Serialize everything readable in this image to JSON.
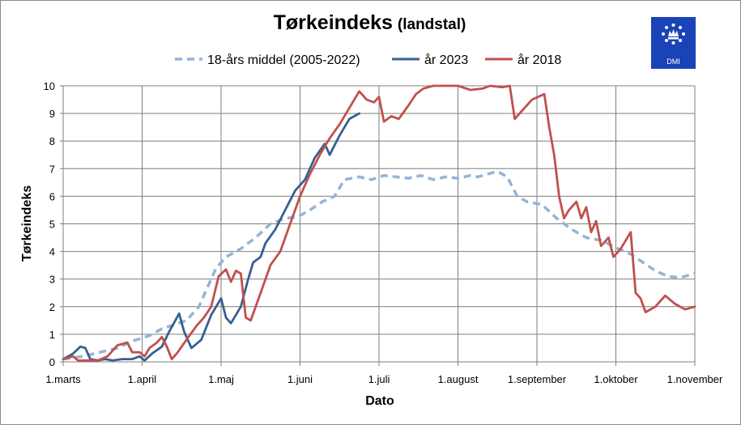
{
  "title": "Tørkeindeks",
  "subtitle": "(landstal)",
  "logo_text": "DMI",
  "colors": {
    "avg": "#95b3d7",
    "y2023": "#376092",
    "y2018": "#c0504d",
    "grid": "#7f7f7f",
    "logo": "#1a43b8"
  },
  "chart_data": {
    "type": "line",
    "xlabel": "Dato",
    "ylabel": "Tørkeindeks",
    "ylim": [
      0,
      10
    ],
    "yticks": [
      "0",
      "1",
      "2",
      "3",
      "4",
      "5",
      "6",
      "7",
      "8",
      "9",
      "10"
    ],
    "xticks": [
      "1.marts",
      "1.april",
      "1.maj",
      "1.juni",
      "1.juli",
      "1.august",
      "1.september",
      "1.oktober",
      "1.november"
    ],
    "x_unit": "days from 1.marts",
    "xlim": [
      0,
      256
    ],
    "grid": true,
    "legend_position": "top",
    "series": [
      {
        "name": "18-års middel (2005-2022)",
        "style": "dashed",
        "points": [
          [
            0,
            0.1
          ],
          [
            8,
            0.2
          ],
          [
            15,
            0.35
          ],
          [
            22,
            0.5
          ],
          [
            28,
            0.75
          ],
          [
            35,
            0.95
          ],
          [
            40,
            1.2
          ],
          [
            45,
            1.35
          ],
          [
            50,
            1.5
          ],
          [
            55,
            2.0
          ],
          [
            58,
            2.6
          ],
          [
            62,
            3.4
          ],
          [
            66,
            3.8
          ],
          [
            72,
            4.1
          ],
          [
            78,
            4.5
          ],
          [
            84,
            5.0
          ],
          [
            90,
            5.2
          ],
          [
            95,
            5.25
          ],
          [
            100,
            5.5
          ],
          [
            105,
            5.8
          ],
          [
            110,
            6.0
          ],
          [
            114,
            6.6
          ],
          [
            120,
            6.7
          ],
          [
            125,
            6.6
          ],
          [
            130,
            6.75
          ],
          [
            135,
            6.7
          ],
          [
            140,
            6.65
          ],
          [
            145,
            6.75
          ],
          [
            150,
            6.6
          ],
          [
            155,
            6.7
          ],
          [
            160,
            6.65
          ],
          [
            165,
            6.75
          ],
          [
            168,
            6.7
          ],
          [
            172,
            6.8
          ],
          [
            176,
            6.9
          ],
          [
            180,
            6.7
          ],
          [
            184,
            6.0
          ],
          [
            188,
            5.8
          ],
          [
            194,
            5.7
          ],
          [
            200,
            5.2
          ],
          [
            206,
            4.8
          ],
          [
            212,
            4.5
          ],
          [
            218,
            4.4
          ],
          [
            225,
            4.1
          ],
          [
            230,
            3.9
          ],
          [
            235,
            3.6
          ],
          [
            240,
            3.3
          ],
          [
            245,
            3.1
          ],
          [
            250,
            3.05
          ],
          [
            256,
            3.2
          ]
        ]
      },
      {
        "name": "år 2023",
        "style": "solid",
        "points": [
          [
            0,
            0.1
          ],
          [
            4,
            0.3
          ],
          [
            7,
            0.55
          ],
          [
            9,
            0.5
          ],
          [
            11,
            0.1
          ],
          [
            14,
            0.05
          ],
          [
            17,
            0.1
          ],
          [
            20,
            0.05
          ],
          [
            24,
            0.1
          ],
          [
            28,
            0.1
          ],
          [
            31,
            0.2
          ],
          [
            33,
            0.05
          ],
          [
            36,
            0.3
          ],
          [
            40,
            0.55
          ],
          [
            43,
            1.1
          ],
          [
            47,
            1.75
          ],
          [
            49,
            1.1
          ],
          [
            52,
            0.5
          ],
          [
            56,
            0.8
          ],
          [
            60,
            1.7
          ],
          [
            64,
            2.3
          ],
          [
            66,
            1.6
          ],
          [
            68,
            1.4
          ],
          [
            72,
            2.0
          ],
          [
            75,
            3.0
          ],
          [
            77,
            3.6
          ],
          [
            80,
            3.8
          ],
          [
            82,
            4.3
          ],
          [
            86,
            4.8
          ],
          [
            90,
            5.5
          ],
          [
            94,
            6.2
          ],
          [
            98,
            6.6
          ],
          [
            102,
            7.4
          ],
          [
            106,
            7.9
          ],
          [
            108,
            7.5
          ],
          [
            112,
            8.2
          ],
          [
            116,
            8.8
          ],
          [
            120,
            9.0
          ]
        ]
      },
      {
        "name": "år 2018",
        "style": "solid",
        "points": [
          [
            0,
            0.1
          ],
          [
            4,
            0.2
          ],
          [
            6,
            0.05
          ],
          [
            10,
            0.05
          ],
          [
            14,
            0.05
          ],
          [
            18,
            0.2
          ],
          [
            22,
            0.6
          ],
          [
            26,
            0.7
          ],
          [
            28,
            0.35
          ],
          [
            31,
            0.35
          ],
          [
            33,
            0.2
          ],
          [
            35,
            0.5
          ],
          [
            38,
            0.7
          ],
          [
            40,
            0.9
          ],
          [
            42,
            0.55
          ],
          [
            44,
            0.1
          ],
          [
            46,
            0.3
          ],
          [
            50,
            0.8
          ],
          [
            54,
            1.3
          ],
          [
            57,
            1.6
          ],
          [
            60,
            2.0
          ],
          [
            63,
            3.1
          ],
          [
            66,
            3.35
          ],
          [
            68,
            2.9
          ],
          [
            70,
            3.3
          ],
          [
            72,
            3.2
          ],
          [
            74,
            1.6
          ],
          [
            76,
            1.5
          ],
          [
            80,
            2.5
          ],
          [
            84,
            3.5
          ],
          [
            88,
            4.0
          ],
          [
            92,
            5.0
          ],
          [
            96,
            6.0
          ],
          [
            100,
            6.8
          ],
          [
            104,
            7.5
          ],
          [
            108,
            8.1
          ],
          [
            112,
            8.6
          ],
          [
            116,
            9.2
          ],
          [
            120,
            9.8
          ],
          [
            123,
            9.5
          ],
          [
            126,
            9.4
          ],
          [
            128,
            9.6
          ],
          [
            130,
            8.7
          ],
          [
            133,
            8.9
          ],
          [
            136,
            8.8
          ],
          [
            140,
            9.3
          ],
          [
            143,
            9.7
          ],
          [
            146,
            9.9
          ],
          [
            150,
            10.0
          ],
          [
            160,
            10.0
          ],
          [
            165,
            9.85
          ],
          [
            170,
            9.9
          ],
          [
            173,
            10.0
          ],
          [
            178,
            9.95
          ],
          [
            181,
            10.0
          ],
          [
            183,
            8.8
          ],
          [
            186,
            9.1
          ],
          [
            190,
            9.5
          ],
          [
            195,
            9.7
          ],
          [
            197,
            8.5
          ],
          [
            199,
            7.5
          ],
          [
            201,
            6.0
          ],
          [
            203,
            5.2
          ],
          [
            205,
            5.5
          ],
          [
            208,
            5.8
          ],
          [
            210,
            5.2
          ],
          [
            212,
            5.6
          ],
          [
            214,
            4.7
          ],
          [
            216,
            5.1
          ],
          [
            218,
            4.2
          ],
          [
            221,
            4.5
          ],
          [
            223,
            3.8
          ],
          [
            226,
            4.1
          ],
          [
            230,
            4.7
          ],
          [
            232,
            2.5
          ],
          [
            234,
            2.3
          ],
          [
            236,
            1.8
          ],
          [
            240,
            2.0
          ],
          [
            244,
            2.4
          ],
          [
            248,
            2.1
          ],
          [
            252,
            1.9
          ],
          [
            256,
            2.0
          ]
        ]
      }
    ]
  }
}
